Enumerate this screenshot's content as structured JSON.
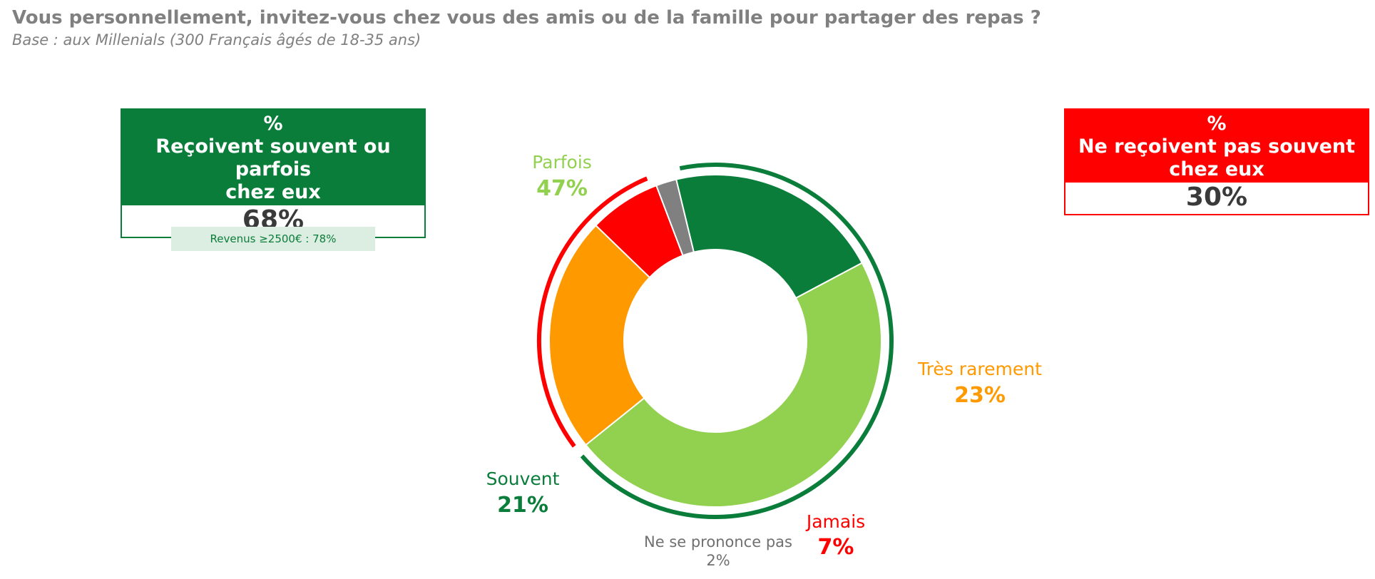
{
  "title": "Vous personnellement, invitez-vous chez vous des amis ou de la famille pour partager des repas ?",
  "subtitle": "Base : aux Millenials (300 Français âgés de 18-35 ans)",
  "summary_left": {
    "line1": "%",
    "line2": "Reçoivent souvent ou parfois",
    "line3": "chez eux",
    "value": "68%",
    "color": "#0a7d3a"
  },
  "summary_right": {
    "line1": "%",
    "line2": "Ne reçoivent pas souvent",
    "line3": "chez eux",
    "value": "30%",
    "color": "#ff0000"
  },
  "note": "Revenus ≥2500€ : 78%",
  "chart_data": {
    "type": "pie",
    "donut": true,
    "title": "",
    "slices": [
      {
        "label": "Parfois",
        "value": 47,
        "display": "47%",
        "color": "#92d050"
      },
      {
        "label": "Très rarement",
        "value": 23,
        "display": "23%",
        "color": "#ff9900"
      },
      {
        "label": "Jamais",
        "value": 7,
        "display": "7%",
        "color": "#ff0000"
      },
      {
        "label": "Ne se prononce pas",
        "value": 2,
        "display": "2%",
        "color": "#808080"
      },
      {
        "label": "Souvent",
        "value": 21,
        "display": "21%",
        "color": "#0a7d3a"
      }
    ],
    "groups": [
      {
        "name": "Reçoivent souvent ou parfois chez eux",
        "slices": [
          "Souvent",
          "Parfois"
        ],
        "color": "#0a7d3a"
      },
      {
        "name": "Ne reçoivent pas souvent chez eux",
        "slices": [
          "Très rarement",
          "Jamais"
        ],
        "color": "#ff0000"
      }
    ]
  }
}
